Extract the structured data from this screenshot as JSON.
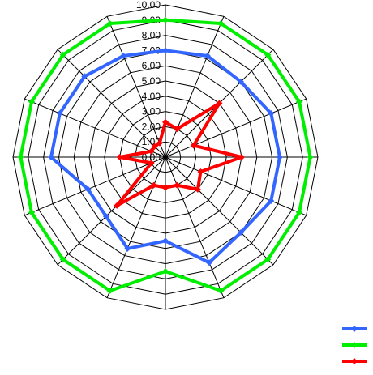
{
  "chart_data": {
    "type": "radar",
    "title": "",
    "num_axes": 16,
    "axis_labels": [],
    "range": [
      0,
      10
    ],
    "ticks": [
      "0.00",
      "1.00",
      "2.00",
      "3.00",
      "4.00",
      "5.00",
      "6.00",
      "7.00",
      "8.00",
      "9.00",
      "10.00"
    ],
    "grid": true,
    "legend_position": "bottom-right",
    "series": [
      {
        "color": "#3366ff",
        "values": [
          7.0,
          7.2,
          7.0,
          7.5,
          7.5,
          7.5,
          7.0,
          7.5,
          5.5,
          6.5,
          5.5,
          5.5,
          7.5,
          7.5,
          7.5,
          7.2
        ]
      },
      {
        "color": "#00ee00",
        "values": [
          9.0,
          9.5,
          9.5,
          9.5,
          9.5,
          9.5,
          9.5,
          9.5,
          7.5,
          9.5,
          9.5,
          9.5,
          9.5,
          9.5,
          9.5,
          9.5
        ]
      },
      {
        "color": "#ff0000",
        "values": [
          2.3,
          2.0,
          5.0,
          2.0,
          5.0,
          2.5,
          3.0,
          2.0,
          2.0,
          2.0,
          4.5,
          1.0,
          3.0,
          1.0,
          1.0,
          1.0
        ]
      }
    ]
  }
}
